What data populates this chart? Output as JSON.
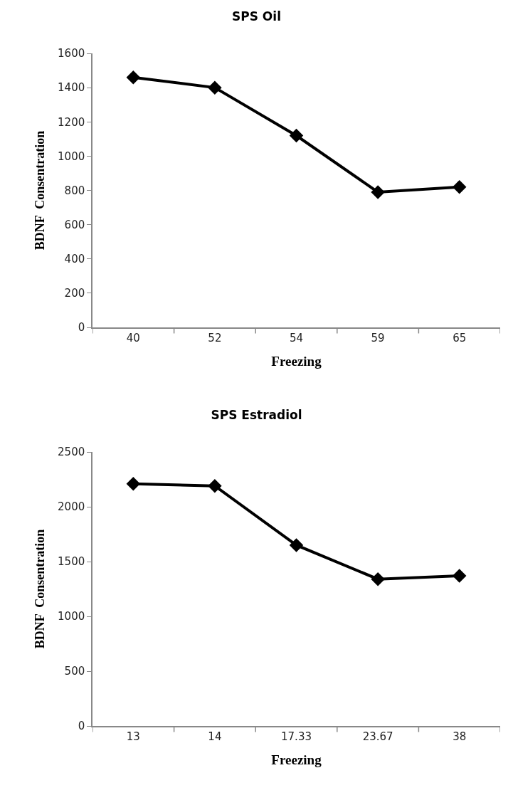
{
  "chart_data": [
    {
      "type": "line",
      "title": "SPS Oil",
      "xlabel": "Freezing",
      "ylabel": "BDNF  Consentration",
      "categories": [
        "40",
        "52",
        "54",
        "59",
        "65"
      ],
      "series": [
        {
          "color": "#000000",
          "values": [
            1460,
            1400,
            1120,
            790,
            820
          ]
        }
      ],
      "ylim": [
        0,
        1600
      ],
      "yticks": [
        0,
        200,
        400,
        600,
        800,
        1000,
        1200,
        1400,
        1600
      ],
      "grid": false,
      "marker": "diamond",
      "line_style": "solid"
    },
    {
      "type": "line",
      "title": "SPS Estradiol",
      "xlabel": "Freezing",
      "ylabel": "BDNF  Consentration",
      "categories": [
        "13",
        "14",
        "17.33",
        "23.67",
        "38"
      ],
      "series": [
        {
          "color": "#000000",
          "values": [
            2210,
            2190,
            1650,
            1340,
            1370
          ]
        }
      ],
      "ylim": [
        0,
        2500
      ],
      "yticks": [
        0,
        500,
        1000,
        1500,
        2000,
        2500
      ],
      "grid": false,
      "marker": "diamond",
      "line_style": "solid"
    }
  ]
}
